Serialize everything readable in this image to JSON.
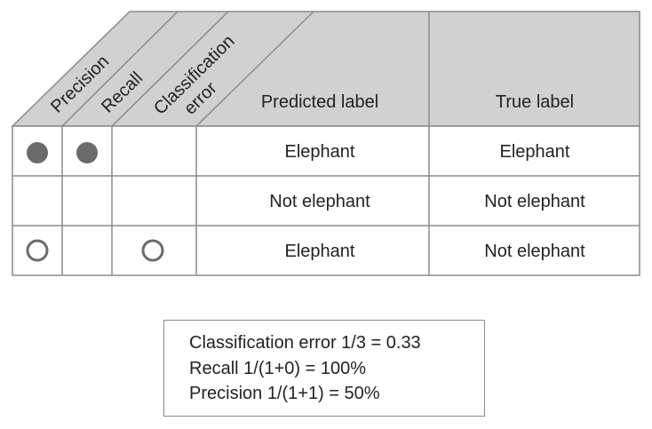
{
  "headers": {
    "precision": "Precision",
    "recall": "Recall",
    "classification_line1": "Classification",
    "classification_line2": "error",
    "predicted": "Predicted label",
    "true": "True label"
  },
  "rows": [
    {
      "precision_marker": "filled",
      "recall_marker": "filled",
      "error_marker": "none",
      "predicted": "Elephant",
      "true": "Elephant"
    },
    {
      "precision_marker": "none",
      "recall_marker": "none",
      "error_marker": "none",
      "predicted": "Not elephant",
      "true": "Not elephant"
    },
    {
      "precision_marker": "hollow",
      "recall_marker": "none",
      "error_marker": "hollow",
      "predicted": "Elephant",
      "true": "Not elephant"
    }
  ],
  "summary": {
    "line1": "Classification error 1/3 = 0.33",
    "line2": "Recall 1/(1+0) = 100%",
    "line3": "Precision 1/(1+1) = 50%"
  },
  "colors": {
    "header_fill": "#d1d1d1",
    "grid": "#8a8a8a",
    "marker": "#6b6b6b"
  }
}
